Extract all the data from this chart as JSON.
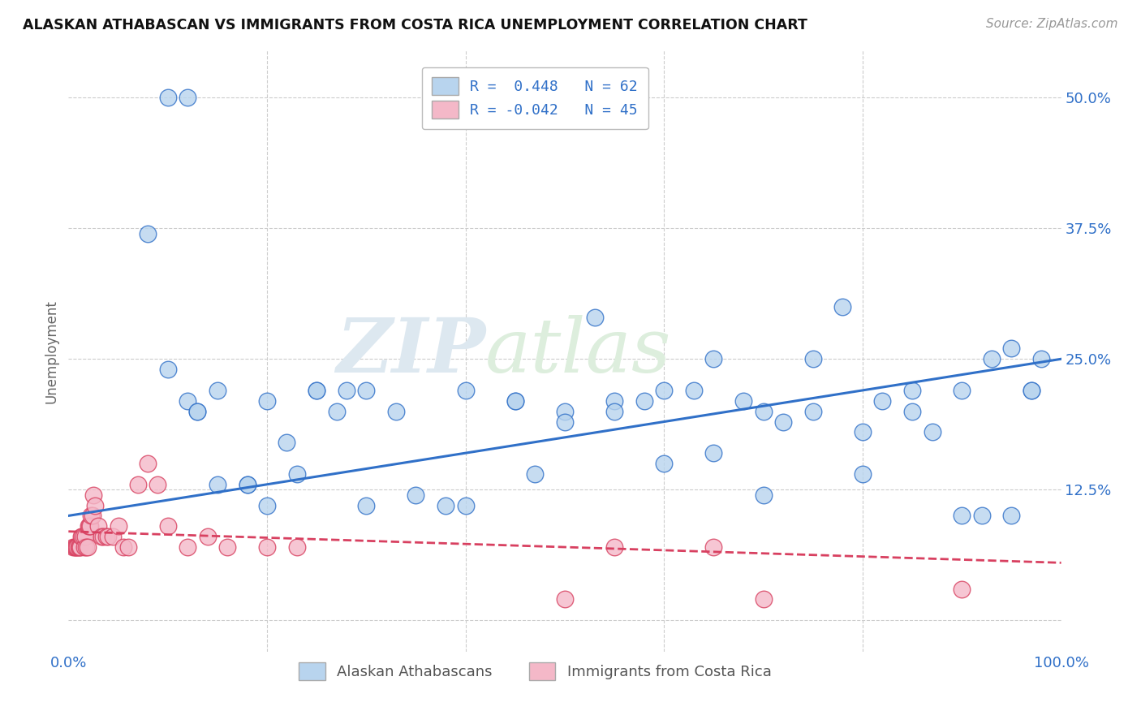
{
  "title": "ALASKAN ATHABASCAN VS IMMIGRANTS FROM COSTA RICA UNEMPLOYMENT CORRELATION CHART",
  "source": "Source: ZipAtlas.com",
  "ylabel": "Unemployment",
  "xlim": [
    0.0,
    1.0
  ],
  "ylim": [
    -0.03,
    0.545
  ],
  "yticks": [
    0.0,
    0.125,
    0.25,
    0.375,
    0.5
  ],
  "xtick_labels": [
    "0.0%",
    "100.0%"
  ],
  "legend_r_blue": "R =  0.448",
  "legend_n_blue": "N = 62",
  "legend_r_pink": "R = -0.042",
  "legend_n_pink": "N = 45",
  "blue_color": "#b8d4ee",
  "pink_color": "#f4b8c8",
  "blue_line_color": "#3070c8",
  "pink_line_color": "#d84060",
  "watermark_zip": "ZIP",
  "watermark_atlas": "atlas",
  "legend_label_blue": "Alaskan Athabascans",
  "legend_label_pink": "Immigrants from Costa Rica",
  "blue_scatter_x": [
    0.08,
    0.1,
    0.12,
    0.13,
    0.13,
    0.15,
    0.18,
    0.2,
    0.22,
    0.25,
    0.27,
    0.3,
    0.33,
    0.38,
    0.4,
    0.45,
    0.47,
    0.5,
    0.53,
    0.55,
    0.58,
    0.6,
    0.63,
    0.65,
    0.68,
    0.7,
    0.72,
    0.75,
    0.78,
    0.8,
    0.82,
    0.85,
    0.87,
    0.9,
    0.92,
    0.95,
    0.97,
    0.5,
    0.6,
    0.7,
    0.8,
    0.9,
    0.93,
    0.95,
    0.97,
    0.98,
    0.1,
    0.12,
    0.15,
    0.18,
    0.2,
    0.23,
    0.25,
    0.28,
    0.3,
    0.35,
    0.4,
    0.45,
    0.55,
    0.65,
    0.75,
    0.85
  ],
  "blue_scatter_y": [
    0.37,
    0.24,
    0.21,
    0.2,
    0.2,
    0.22,
    0.13,
    0.21,
    0.17,
    0.22,
    0.2,
    0.11,
    0.2,
    0.11,
    0.22,
    0.21,
    0.14,
    0.2,
    0.29,
    0.21,
    0.21,
    0.22,
    0.22,
    0.16,
    0.21,
    0.2,
    0.19,
    0.2,
    0.3,
    0.14,
    0.21,
    0.22,
    0.18,
    0.22,
    0.1,
    0.1,
    0.22,
    0.19,
    0.15,
    0.12,
    0.18,
    0.1,
    0.25,
    0.26,
    0.22,
    0.25,
    0.5,
    0.5,
    0.13,
    0.13,
    0.11,
    0.14,
    0.22,
    0.22,
    0.22,
    0.12,
    0.11,
    0.21,
    0.2,
    0.25,
    0.25,
    0.2
  ],
  "pink_scatter_x": [
    0.005,
    0.006,
    0.007,
    0.008,
    0.009,
    0.01,
    0.011,
    0.012,
    0.013,
    0.014,
    0.015,
    0.016,
    0.017,
    0.018,
    0.019,
    0.02,
    0.021,
    0.022,
    0.023,
    0.024,
    0.025,
    0.027,
    0.03,
    0.033,
    0.035,
    0.038,
    0.04,
    0.045,
    0.05,
    0.055,
    0.06,
    0.07,
    0.08,
    0.09,
    0.1,
    0.12,
    0.14,
    0.16,
    0.2,
    0.23,
    0.5,
    0.55,
    0.65,
    0.7,
    0.9
  ],
  "pink_scatter_y": [
    0.07,
    0.07,
    0.07,
    0.07,
    0.07,
    0.07,
    0.07,
    0.07,
    0.08,
    0.08,
    0.08,
    0.07,
    0.08,
    0.07,
    0.07,
    0.09,
    0.09,
    0.09,
    0.1,
    0.1,
    0.12,
    0.11,
    0.09,
    0.08,
    0.08,
    0.08,
    0.08,
    0.08,
    0.09,
    0.07,
    0.07,
    0.13,
    0.15,
    0.13,
    0.09,
    0.07,
    0.08,
    0.07,
    0.07,
    0.07,
    0.02,
    0.07,
    0.07,
    0.02,
    0.03
  ],
  "blue_trendline_x": [
    0.0,
    1.0
  ],
  "blue_trendline_y": [
    0.1,
    0.25
  ],
  "pink_trendline_x": [
    0.0,
    1.0
  ],
  "pink_trendline_y": [
    0.085,
    0.055
  ]
}
